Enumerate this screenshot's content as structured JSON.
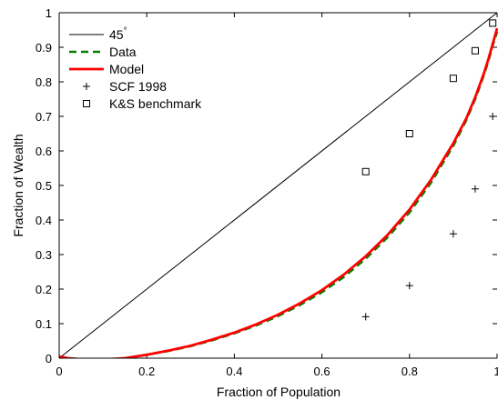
{
  "chart_data": {
    "type": "line",
    "title": "",
    "xlabel": "Fraction of Population",
    "ylabel": "Fraction of Wealth",
    "xlim": [
      0,
      1
    ],
    "ylim": [
      0,
      1
    ],
    "xticks": [
      "0",
      "0.2",
      "0.4",
      "0.6",
      "0.8",
      "1"
    ],
    "yticks": [
      "0",
      "0.1",
      "0.2",
      "0.3",
      "0.4",
      "0.5",
      "0.6",
      "0.7",
      "0.8",
      "0.9",
      "1"
    ],
    "grid": false,
    "legend_position": "top-left",
    "series": [
      {
        "name": "45",
        "name_superscript": "°",
        "style": "line",
        "color": "#000000",
        "x": [
          0,
          1
        ],
        "y": [
          0,
          1
        ]
      },
      {
        "name": "Data",
        "style": "dashed",
        "color": "#008000",
        "x": [
          0,
          0.02,
          0.05,
          0.08,
          0.1,
          0.15,
          0.2,
          0.25,
          0.3,
          0.35,
          0.4,
          0.45,
          0.5,
          0.55,
          0.6,
          0.65,
          0.7,
          0.75,
          0.8,
          0.85,
          0.9,
          0.93,
          0.95,
          0.97,
          0.98,
          0.99,
          1.0
        ],
        "y": [
          0.005,
          -0.003,
          -0.006,
          -0.006,
          -0.005,
          0.0,
          0.01,
          0.021,
          0.035,
          0.052,
          0.072,
          0.095,
          0.122,
          0.154,
          0.191,
          0.235,
          0.288,
          0.35,
          0.422,
          0.51,
          0.615,
          0.69,
          0.75,
          0.82,
          0.86,
          0.905,
          0.945
        ]
      },
      {
        "name": "Model",
        "style": "line",
        "color": "#ff0000",
        "x": [
          0,
          0.02,
          0.05,
          0.08,
          0.1,
          0.15,
          0.2,
          0.25,
          0.3,
          0.35,
          0.4,
          0.45,
          0.5,
          0.55,
          0.6,
          0.65,
          0.7,
          0.75,
          0.8,
          0.85,
          0.9,
          0.93,
          0.95,
          0.97,
          0.98,
          0.99,
          1.0
        ],
        "y": [
          0.005,
          0.0,
          -0.003,
          -0.004,
          -0.004,
          0.0,
          0.01,
          0.022,
          0.036,
          0.054,
          0.074,
          0.098,
          0.126,
          0.159,
          0.197,
          0.242,
          0.295,
          0.357,
          0.43,
          0.518,
          0.622,
          0.695,
          0.755,
          0.825,
          0.865,
          0.91,
          0.955
        ]
      },
      {
        "name": "SCF 1998",
        "style": "marker-plus",
        "color": "#000000",
        "x": [
          0.7,
          0.8,
          0.9,
          0.95,
          0.99
        ],
        "y": [
          0.12,
          0.21,
          0.36,
          0.49,
          0.7
        ]
      },
      {
        "name": "K&S benchmark",
        "style": "marker-square",
        "color": "#000000",
        "x": [
          0.7,
          0.8,
          0.9,
          0.95,
          0.99
        ],
        "y": [
          0.54,
          0.65,
          0.81,
          0.89,
          0.97
        ]
      }
    ]
  }
}
